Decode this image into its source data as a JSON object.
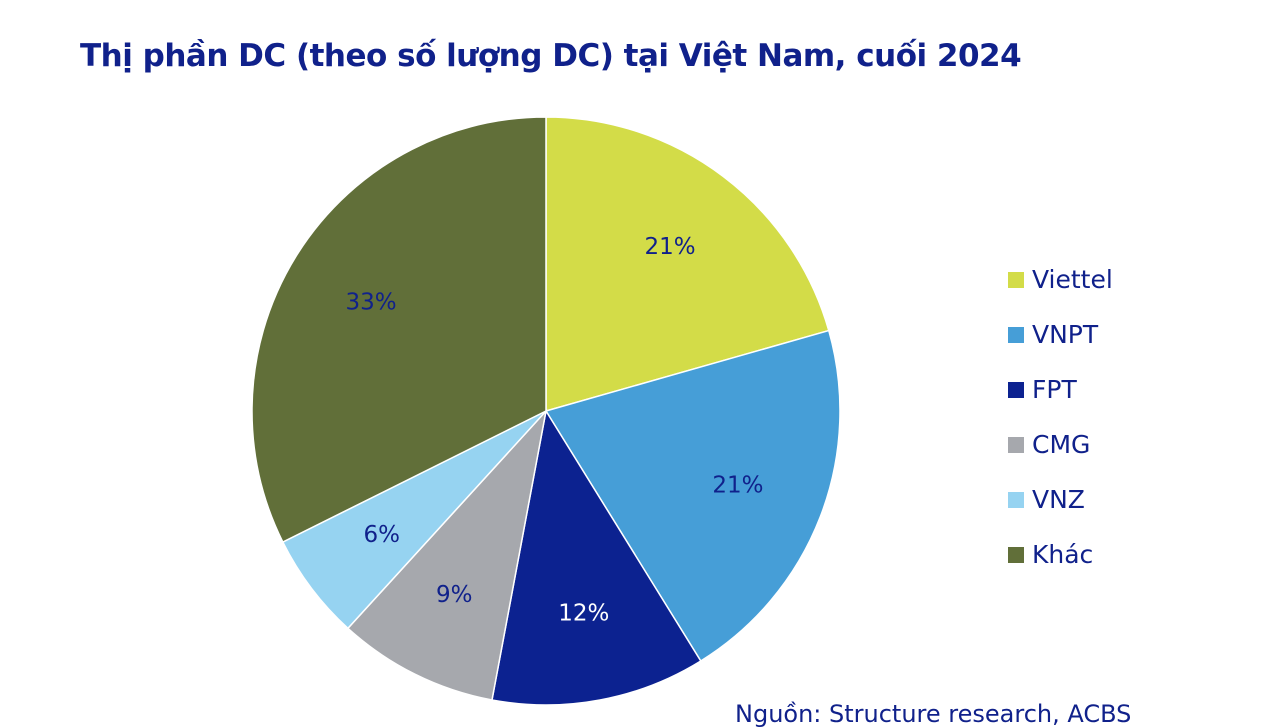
{
  "chart_data": {
    "type": "pie",
    "title": "Thị phần DC (theo số lượng DC) tại Việt Nam, cuối 2024",
    "categories": [
      "Viettel",
      "VNPT",
      "FPT",
      "CMG",
      "VNZ",
      "Khác"
    ],
    "values": [
      21,
      21,
      12,
      9,
      6,
      33
    ],
    "data_labels": [
      "21%",
      "21%",
      "12%",
      "9%",
      "6%",
      "33%"
    ],
    "colors": [
      "#d3dc48",
      "#469ed7",
      "#0c2290",
      "#a6a8ad",
      "#96d3f1",
      "#616f39"
    ],
    "label_colors": [
      "#10218b",
      "#10218b",
      "#ffffff",
      "#10218b",
      "#10218b",
      "#10218b"
    ],
    "start_angle": "12 o'clock",
    "direction": "clockwise",
    "legend_position": "right"
  },
  "source_note": "Nguồn: Structure research, ACBS"
}
